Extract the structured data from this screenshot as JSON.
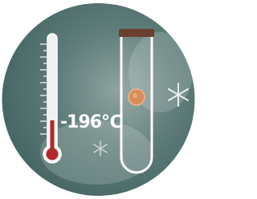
{
  "label": "-196℃"
}
